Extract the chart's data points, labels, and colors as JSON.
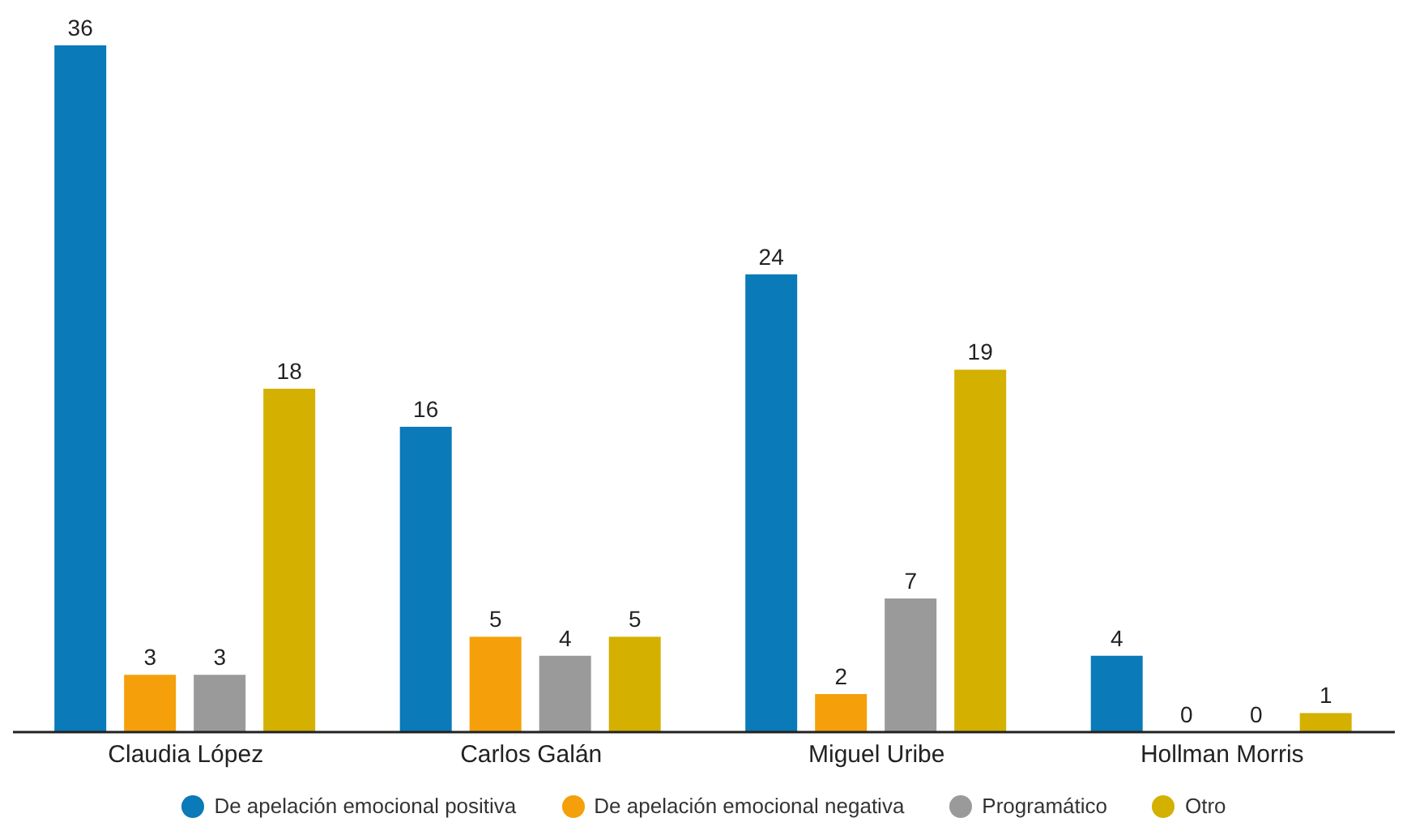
{
  "chart_data": {
    "type": "bar",
    "categories": [
      "Claudia López",
      "Carlos Galán",
      "Miguel Uribe",
      "Hollman Morris"
    ],
    "series": [
      {
        "name": "De apelación emocional positiva",
        "color": "#0a7ab8",
        "values": [
          36,
          16,
          24,
          4
        ]
      },
      {
        "name": "De apelación emocional negativa",
        "color": "#f5a00a",
        "values": [
          3,
          5,
          2,
          0
        ]
      },
      {
        "name": "Programático",
        "color": "#9a9a9a",
        "values": [
          3,
          4,
          7,
          0
        ]
      },
      {
        "name": "Otro",
        "color": "#d4b000",
        "values": [
          18,
          5,
          19,
          1
        ]
      }
    ],
    "data_labels": true,
    "legend": "bottom",
    "grid": false
  }
}
